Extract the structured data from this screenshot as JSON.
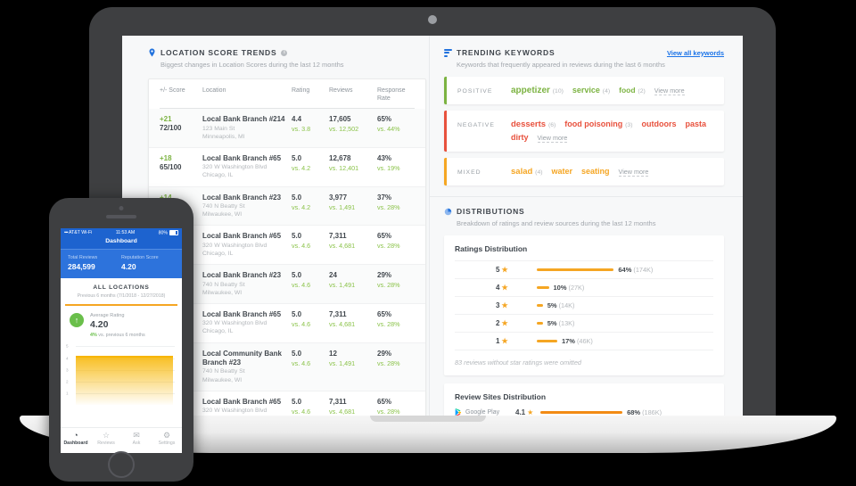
{
  "colors": {
    "positive_green": "#7cb342",
    "negative_red": "#e8513d",
    "mixed_yellow": "#f5a623",
    "link_blue": "#1a73e8",
    "bar_gold": "#f5a623",
    "bar_orange": "#f28b14",
    "phone_blue": "#1d63cf"
  },
  "loc": {
    "title": "LOCATION SCORE TRENDS",
    "subtitle": "Biggest changes in Location Scores during the last 12 months",
    "columns": [
      "+/- Score",
      "Location",
      "Rating",
      "Reviews",
      "Response Rate"
    ],
    "rows": [
      {
        "change": "+21",
        "score": "72/100",
        "name": "Local Bank Branch #214",
        "addr": "123 Main St",
        "city": "Minneapolis, MI",
        "rating": "4.4",
        "rating_vs": "vs. 3.8",
        "reviews": "17,605",
        "reviews_vs": "vs. 12,502",
        "response": "65%",
        "response_vs": "vs. 44%"
      },
      {
        "change": "+18",
        "score": "65/100",
        "name": "Local Bank Branch #65",
        "addr": "320 W Washington Blvd",
        "city": "Chicago, IL",
        "rating": "5.0",
        "rating_vs": "vs. 4.2",
        "reviews": "12,678",
        "reviews_vs": "vs. 12,401",
        "response": "43%",
        "response_vs": "vs. 19%"
      },
      {
        "change": "+14",
        "score": "65/100",
        "name": "Local Bank Branch #23",
        "addr": "740 N Beatty St",
        "city": "Milwaukee, WI",
        "rating": "5.0",
        "rating_vs": "vs. 4.2",
        "reviews": "3,977",
        "reviews_vs": "vs. 1,491",
        "response": "37%",
        "response_vs": "vs. 28%"
      },
      {
        "change": "",
        "score": "",
        "name": "Local Bank Branch #65",
        "addr": "320 W Washington Blvd",
        "city": "Chicago, IL",
        "rating": "5.0",
        "rating_vs": "vs. 4.6",
        "reviews": "7,311",
        "reviews_vs": "vs. 4,681",
        "response": "65%",
        "response_vs": "vs. 28%"
      },
      {
        "change": "",
        "score": "",
        "name": "Local Bank Branch #23",
        "addr": "740 N Beatty St",
        "city": "Milwaukee, WI",
        "rating": "5.0",
        "rating_vs": "vs. 4.6",
        "reviews": "24",
        "reviews_vs": "vs. 1,491",
        "response": "29%",
        "response_vs": "vs. 28%"
      },
      {
        "change": "",
        "score": "",
        "name": "Local Bank Branch #65",
        "addr": "320 W Washington Blvd",
        "city": "Chicago, IL",
        "rating": "5.0",
        "rating_vs": "vs. 4.6",
        "reviews": "7,311",
        "reviews_vs": "vs. 4,681",
        "response": "65%",
        "response_vs": "vs. 28%"
      },
      {
        "change": "",
        "score": "",
        "name": "Local Community Bank Branch #23",
        "addr": "740 N Beatty St",
        "city": "Milwaukee, WI",
        "rating": "5.0",
        "rating_vs": "vs. 4.6",
        "reviews": "12",
        "reviews_vs": "vs. 1,491",
        "response": "29%",
        "response_vs": "vs. 28%"
      },
      {
        "change": "",
        "score": "",
        "name": "Local Bank Branch #65",
        "addr": "320 W Washington Blvd",
        "city": "Chicago, IL",
        "rating": "5.0",
        "rating_vs": "vs. 4.6",
        "reviews": "7,311",
        "reviews_vs": "vs. 4,681",
        "response": "65%",
        "response_vs": "vs. 28%"
      }
    ]
  },
  "kw": {
    "title": "TRENDING KEYWORDS",
    "link": "View all keywords",
    "subtitle": "Keywords that frequently appeared in reviews during the last 6 months",
    "groups": [
      {
        "label": "POSITIVE",
        "color": "#7cb342",
        "keywords": [
          {
            "text": "appetizer",
            "count": "(10)",
            "size": 10
          },
          {
            "text": "service",
            "count": "(4)",
            "size": 9
          },
          {
            "text": "food",
            "count": "(2)",
            "size": 8.5
          }
        ],
        "more": "View more"
      },
      {
        "label": "NEGATIVE",
        "color": "#e8513d",
        "keywords": [
          {
            "text": "desserts",
            "count": "(6)",
            "size": 9.5
          },
          {
            "text": "food poisoning",
            "count": "(3)",
            "size": 9
          },
          {
            "text": "outdoors",
            "count": "",
            "size": 9
          },
          {
            "text": "pasta",
            "count": "",
            "size": 9
          },
          {
            "text": "dirty",
            "count": "",
            "size": 9
          }
        ],
        "more": "View more"
      },
      {
        "label": "MIXED",
        "color": "#f5a623",
        "keywords": [
          {
            "text": "salad",
            "count": "(4)",
            "size": 9.5
          },
          {
            "text": "water",
            "count": "",
            "size": 9
          },
          {
            "text": "seating",
            "count": "",
            "size": 9
          }
        ],
        "more": "View more"
      }
    ]
  },
  "dist": {
    "title": "DISTRIBUTIONS",
    "subtitle": "Breakdown of ratings and review sources during the last 12 months",
    "ratings": {
      "title": "Ratings Distribution",
      "rows": [
        {
          "stars": "5",
          "pct": 64,
          "pct_label": "64%",
          "count": "(174K)"
        },
        {
          "stars": "4",
          "pct": 10,
          "pct_label": "10%",
          "count": "(27K)"
        },
        {
          "stars": "3",
          "pct": 5,
          "pct_label": "5%",
          "count": "(14K)"
        },
        {
          "stars": "2",
          "pct": 5,
          "pct_label": "5%",
          "count": "(13K)"
        },
        {
          "stars": "1",
          "pct": 17,
          "pct_label": "17%",
          "count": "(46K)"
        }
      ],
      "footnote": "83 reviews without star ratings were omitted"
    },
    "sites": {
      "title": "Review Sites Distribution",
      "rows": [
        {
          "site": "Google Play",
          "rating": "4.1",
          "pct": 68,
          "pct_label": "68%",
          "count": "(186K)"
        }
      ]
    }
  },
  "phone": {
    "status": {
      "carrier": "AT&T Wi-Fi",
      "time": "11:53 AM",
      "battery": "80%"
    },
    "nav_title": "Dashboard",
    "stats": [
      {
        "label": "Total Reviews",
        "value": "284,599"
      },
      {
        "label": "Reputation Score",
        "value": "4.20"
      }
    ],
    "section": {
      "title": "ALL LOCATIONS",
      "subtitle": "Previous 6 months (7/1/2018 - 12/27/2018)"
    },
    "average": {
      "label": "Average Rating",
      "value": "4.20",
      "delta": "4%",
      "delta_suffix": "vs. previous 6 months",
      "arrow": "↑"
    },
    "chart": {
      "y_ticks": [
        "5",
        "4",
        "3",
        "2",
        "1"
      ],
      "value": 4.2,
      "max": 5
    },
    "tabs": [
      {
        "label": "Dashboard",
        "icon": "gauge",
        "active": true
      },
      {
        "label": "Reviews",
        "icon": "star",
        "active": false
      },
      {
        "label": "Ask",
        "icon": "envelope",
        "active": false
      },
      {
        "label": "Settings",
        "icon": "gear",
        "active": false
      }
    ]
  }
}
